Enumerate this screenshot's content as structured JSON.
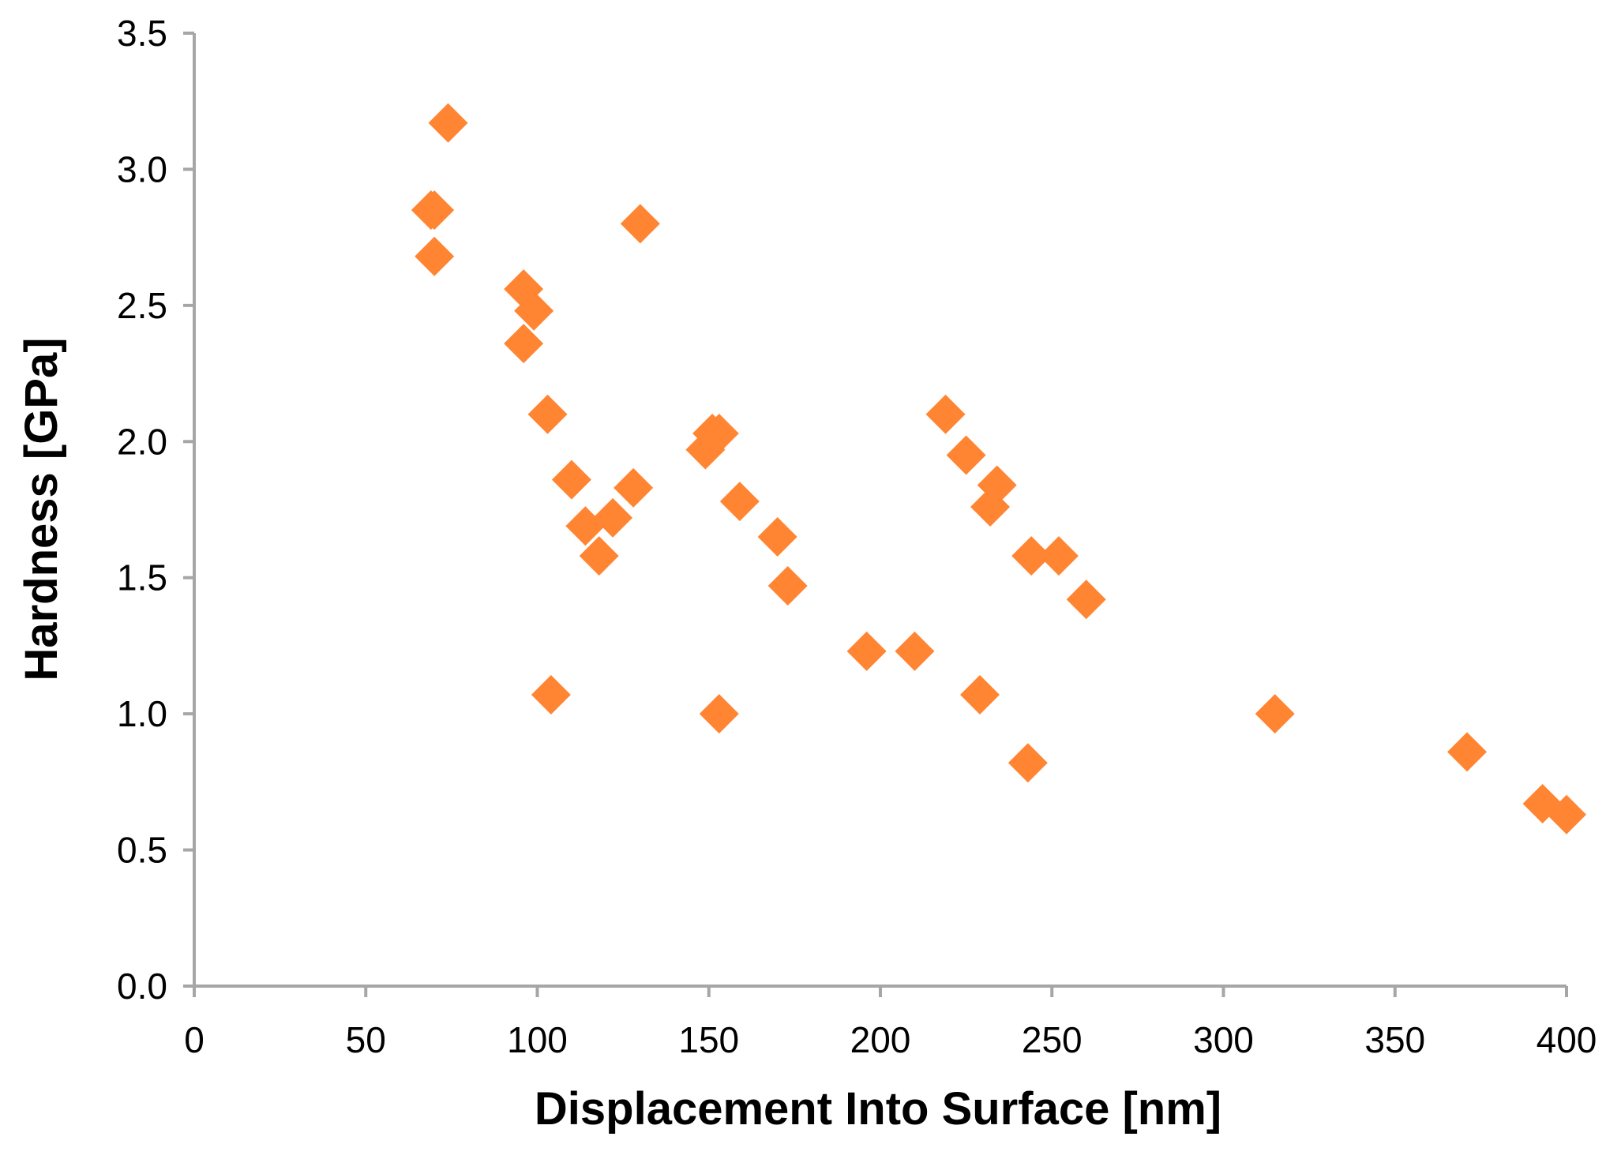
{
  "chart_data": {
    "type": "scatter",
    "title": "",
    "xlabel": "Displacement Into Surface [nm]",
    "ylabel": "Hardness [GPa]",
    "xlim": [
      0,
      400
    ],
    "ylim": [
      0.0,
      3.5
    ],
    "x_ticks": [
      "0",
      "50",
      "100",
      "150",
      "200",
      "250",
      "300",
      "350",
      "400"
    ],
    "y_ticks": [
      "0.0",
      "0.5",
      "1.0",
      "1.5",
      "2.0",
      "2.5",
      "3.0",
      "3.5"
    ],
    "grid": false,
    "legend": "none",
    "colors": {
      "marker": "#FF8533",
      "marker_dark": "#F07322",
      "axis": "#A6A6A6"
    },
    "series": [
      {
        "marker": "diamond",
        "x": [
          69,
          70,
          70,
          74,
          96,
          96,
          99,
          103,
          104,
          110,
          114,
          118,
          122,
          128,
          130,
          149,
          151,
          153,
          153,
          159,
          170,
          173,
          196,
          210,
          219,
          225,
          229,
          232,
          234,
          243,
          244,
          252,
          260,
          315,
          371,
          393,
          400
        ],
        "y": [
          2.85,
          2.85,
          2.68,
          3.17,
          2.56,
          2.36,
          2.48,
          2.1,
          1.07,
          1.86,
          1.69,
          1.58,
          1.72,
          1.83,
          2.8,
          1.97,
          2.03,
          2.03,
          1.0,
          1.78,
          1.65,
          1.47,
          1.23,
          1.23,
          2.1,
          1.95,
          1.07,
          1.76,
          1.84,
          0.82,
          1.58,
          1.58,
          1.42,
          1.0,
          0.86,
          0.67,
          0.63
        ]
      }
    ]
  }
}
